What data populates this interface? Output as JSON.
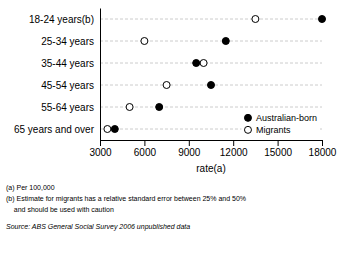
{
  "chart_data": {
    "type": "dot",
    "orientation": "horizontal",
    "categories": [
      "18-24 years(b)",
      "25-34 years",
      "35-44 years",
      "45-54 years",
      "55-64 years",
      "65 years and over"
    ],
    "series": [
      {
        "name": "Australian-born",
        "color": "#000000",
        "marker": "circle",
        "values": [
          18000,
          11500,
          9500,
          10500,
          7000,
          4000
        ]
      },
      {
        "name": "Migrants",
        "color": "#ffffff",
        "marker": "circle",
        "values": [
          13500,
          6000,
          10000,
          7500,
          5000,
          3500
        ]
      }
    ],
    "x_label": "rate(a)",
    "xlim": [
      3000,
      18000
    ],
    "xticks": [
      3000,
      6000,
      9000,
      12000,
      15000,
      18000
    ],
    "grid": true,
    "legend": "lower right",
    "annotations": [
      "(a) Per 100,000",
      "(b) Estimate for migrants has a relative standard error between 25% and 50%",
      "    and should be used with caution",
      "Source: ABS General Social Survey 2006 unpublished data"
    ]
  }
}
